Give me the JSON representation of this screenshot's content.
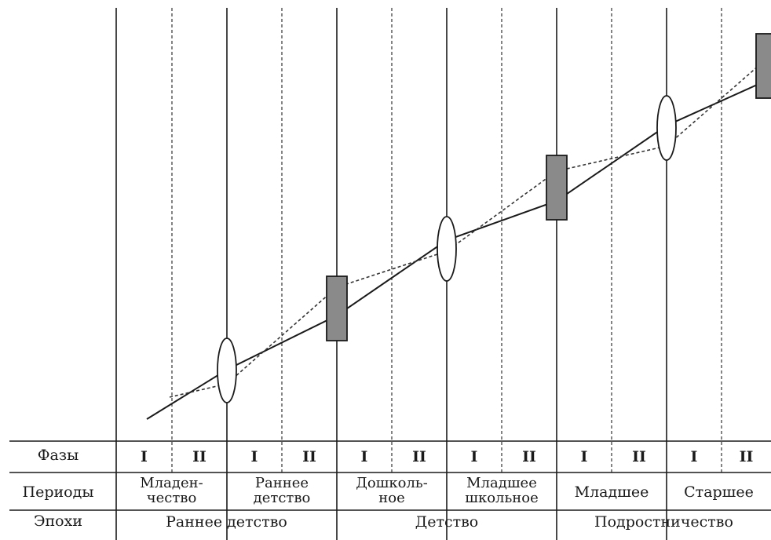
{
  "row_labels": {
    "phases": "Фазы",
    "periods": "Периоды",
    "epochs": "Эпохи"
  },
  "phases": [
    "I",
    "II",
    "I",
    "II",
    "I",
    "II",
    "I",
    "II",
    "I",
    "II",
    "I",
    "II"
  ],
  "periods": [
    {
      "lines": [
        "Младен-",
        "чество"
      ]
    },
    {
      "lines": [
        "Раннее",
        "детство"
      ]
    },
    {
      "lines": [
        "Дошколь-",
        "ное"
      ]
    },
    {
      "lines": [
        "Младшее",
        "школьное"
      ]
    },
    {
      "lines": [
        "Младшее"
      ]
    },
    {
      "lines": [
        "Старшее"
      ]
    }
  ],
  "epochs": [
    "Раннее детство",
    "Детство",
    "Подростничество"
  ],
  "crisis_markers": [
    {
      "type": "lens"
    },
    {
      "type": "rect"
    },
    {
      "type": "lens"
    },
    {
      "type": "rect"
    },
    {
      "type": "lens"
    },
    {
      "type": "rect"
    }
  ],
  "colors": {
    "line": "#1a1a1a",
    "rect_fill": "#8a8a8a",
    "dashed": "#333333"
  }
}
